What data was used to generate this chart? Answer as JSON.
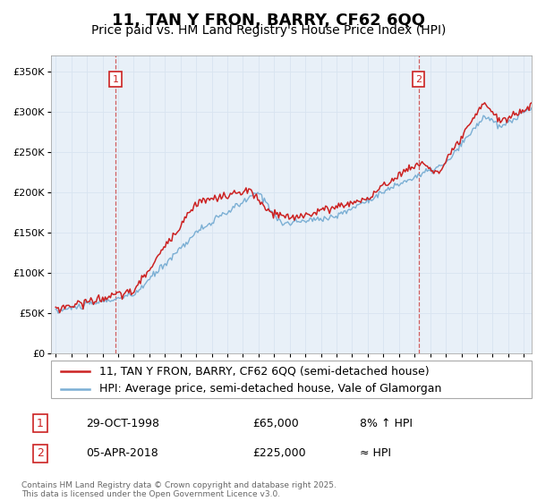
{
  "title": "11, TAN Y FRON, BARRY, CF62 6QQ",
  "subtitle": "Price paid vs. HM Land Registry's House Price Index (HPI)",
  "ylim": [
    0,
    370000
  ],
  "yticks": [
    0,
    50000,
    100000,
    150000,
    200000,
    250000,
    300000,
    350000
  ],
  "ytick_labels": [
    "£0",
    "£50K",
    "£100K",
    "£150K",
    "£200K",
    "£250K",
    "£300K",
    "£350K"
  ],
  "xlim_start": 1994.7,
  "xlim_end": 2025.5,
  "xticks": [
    1995,
    1996,
    1997,
    1998,
    1999,
    2000,
    2001,
    2002,
    2003,
    2004,
    2005,
    2006,
    2007,
    2008,
    2009,
    2010,
    2011,
    2012,
    2013,
    2014,
    2015,
    2016,
    2017,
    2018,
    2019,
    2020,
    2021,
    2022,
    2023,
    2024,
    2025
  ],
  "hpi_color": "#7bafd4",
  "price_color": "#cc2222",
  "vline_color": "#cc4444",
  "grid_color": "#d8e4f0",
  "plot_bg_color": "#e8f0f8",
  "background_color": "#ffffff",
  "sale1_x": 1998.83,
  "sale1_y": 65000,
  "sale1_label": "1",
  "sale2_x": 2018.25,
  "sale2_y": 225000,
  "sale2_label": "2",
  "legend_line1": "11, TAN Y FRON, BARRY, CF62 6QQ (semi-detached house)",
  "legend_line2": "HPI: Average price, semi-detached house, Vale of Glamorgan",
  "table_row1": [
    "1",
    "29-OCT-1998",
    "£65,000",
    "8% ↑ HPI"
  ],
  "table_row2": [
    "2",
    "05-APR-2018",
    "£225,000",
    "≈ HPI"
  ],
  "footer": "Contains HM Land Registry data © Crown copyright and database right 2025.\nThis data is licensed under the Open Government Licence v3.0.",
  "title_fontsize": 13,
  "subtitle_fontsize": 10,
  "tick_fontsize": 8,
  "legend_fontsize": 9
}
